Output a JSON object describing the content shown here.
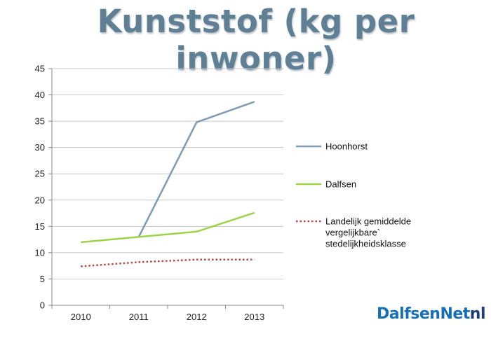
{
  "title": "Kunststof (kg per inwoner)",
  "brand": {
    "part1": "DalfsenNet",
    "part2": "nl"
  },
  "chart_data": {
    "type": "line",
    "title": "Kunststof (kg per inwoner)",
    "categories": [
      "2010",
      "2011",
      "2012",
      "2013"
    ],
    "ylim": [
      0,
      45
    ],
    "yticks": [
      0,
      5,
      10,
      15,
      20,
      25,
      30,
      35,
      40,
      45
    ],
    "grid": true,
    "legend_position": "right",
    "series": [
      {
        "name": "Hoonhorst",
        "values": [
          null,
          13,
          34.8,
          38.7
        ],
        "color": "#7f9bb3",
        "style": "solid"
      },
      {
        "name": "Dalfsen",
        "values": [
          12,
          13,
          14,
          17.6
        ],
        "color": "#9cd34a",
        "style": "solid"
      },
      {
        "name": "Landelijk gemiddelde vergelijkbare` stedelijkheidsklasse",
        "label_lines": [
          "Landelijk gemiddelde",
          "vergelijkbare`",
          "stedelijkheidsklasse"
        ],
        "values": [
          7.4,
          8.2,
          8.7,
          8.7
        ],
        "color": "#b34a45",
        "style": "dotted"
      }
    ]
  }
}
